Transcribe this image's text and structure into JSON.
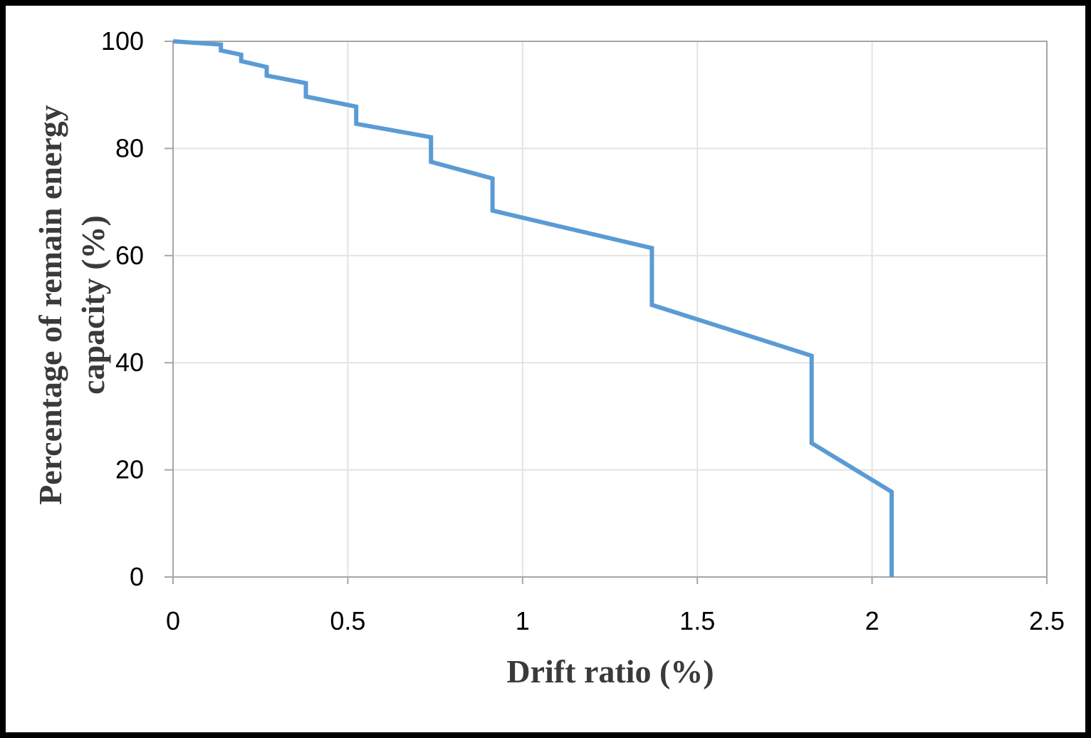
{
  "chart_data": {
    "type": "line",
    "title": "",
    "xlabel": "Drift ratio (%)",
    "ylabel_lines": [
      "Percentage of remain energy",
      "capacity (%)"
    ],
    "xlim": [
      0,
      2.5
    ],
    "ylim": [
      0,
      100
    ],
    "x_ticks": [
      0,
      0.5,
      1,
      1.5,
      2,
      2.5
    ],
    "x_tick_labels": [
      "0",
      "0.5",
      "1",
      "1.5",
      "2",
      "2.5"
    ],
    "y_ticks": [
      0,
      20,
      40,
      60,
      80,
      100
    ],
    "y_tick_labels": [
      "0",
      "20",
      "40",
      "60",
      "80",
      "100"
    ],
    "grid": true,
    "legend": "none",
    "series": [
      {
        "color": "#5b9bd5",
        "x": [
          0,
          0.137,
          0.137,
          0.195,
          0.195,
          0.268,
          0.268,
          0.38,
          0.38,
          0.524,
          0.524,
          0.738,
          0.738,
          0.914,
          0.914,
          1.37,
          1.37,
          1.827,
          1.827,
          2.056,
          2.056
        ],
        "y": [
          100,
          99.4,
          98.3,
          97.5,
          96.3,
          95.2,
          93.6,
          92.2,
          89.7,
          87.8,
          84.6,
          82.1,
          77.5,
          74.4,
          68.4,
          61.4,
          50.8,
          41.3,
          25.0,
          15.9,
          0
        ]
      }
    ]
  }
}
